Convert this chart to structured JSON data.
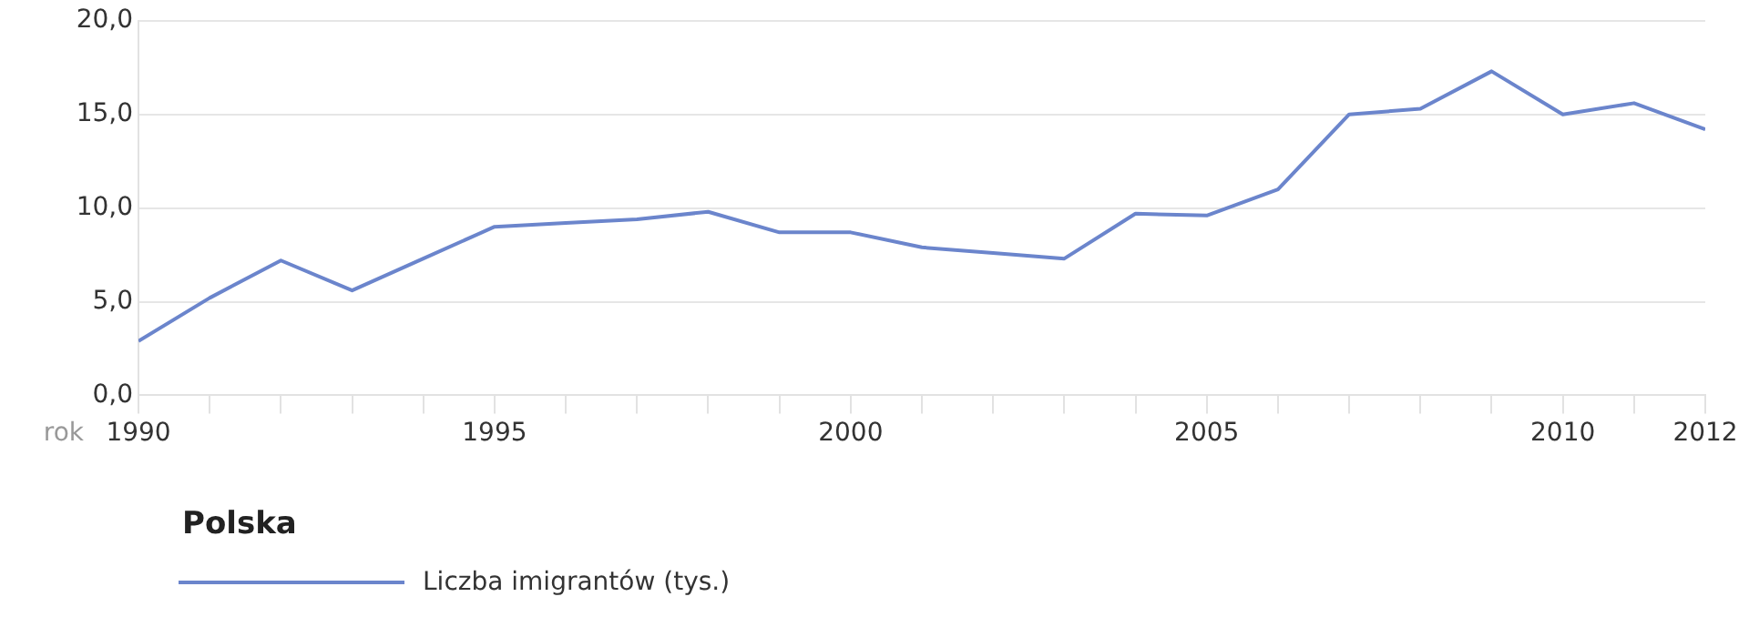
{
  "chart_data": {
    "type": "line",
    "title": "Polska",
    "xlabel": "rok",
    "x": [
      1990,
      1991,
      1992,
      1993,
      1994,
      1995,
      1996,
      1997,
      1998,
      1999,
      2000,
      2001,
      2002,
      2003,
      2004,
      2005,
      2006,
      2007,
      2008,
      2009,
      2010,
      2011,
      2012
    ],
    "series": [
      {
        "name": "Liczba imigrantów (tys.)",
        "color": "#6b85cc",
        "values": [
          2.9,
          5.2,
          7.2,
          5.6,
          7.3,
          9.0,
          9.2,
          9.4,
          9.8,
          8.7,
          8.7,
          7.9,
          7.6,
          7.3,
          9.7,
          9.6,
          11.0,
          15.0,
          15.3,
          17.3,
          15.0,
          15.6,
          14.2
        ]
      }
    ],
    "xlim": [
      1990,
      2012
    ],
    "xticks": [
      1990,
      {
        "value": 1991,
        "label": null
      },
      {
        "value": 1992,
        "label": null
      },
      {
        "value": 1993,
        "label": null
      },
      {
        "value": 1994,
        "label": null
      },
      1995,
      {
        "value": 1996,
        "label": null
      },
      {
        "value": 1997,
        "label": null
      },
      {
        "value": 1998,
        "label": null
      },
      {
        "value": 1999,
        "label": null
      },
      2000,
      {
        "value": 2001,
        "label": null
      },
      {
        "value": 2002,
        "label": null
      },
      {
        "value": 2003,
        "label": null
      },
      {
        "value": 2004,
        "label": null
      },
      2005,
      {
        "value": 2006,
        "label": null
      },
      {
        "value": 2007,
        "label": null
      },
      {
        "value": 2008,
        "label": null
      },
      {
        "value": 2009,
        "label": null
      },
      2010,
      {
        "value": 2011,
        "label": null
      },
      2012
    ],
    "ylim": [
      0,
      20
    ],
    "yticks": [
      {
        "value": 0,
        "label": "0,0"
      },
      {
        "value": 5,
        "label": "5,0"
      },
      {
        "value": 10,
        "label": "10,0"
      },
      {
        "value": 15,
        "label": "15,0"
      },
      {
        "value": 20,
        "label": "20,0"
      }
    ],
    "grid": "y",
    "legend": "bottom left",
    "marker": "none",
    "line_style": "solid"
  }
}
